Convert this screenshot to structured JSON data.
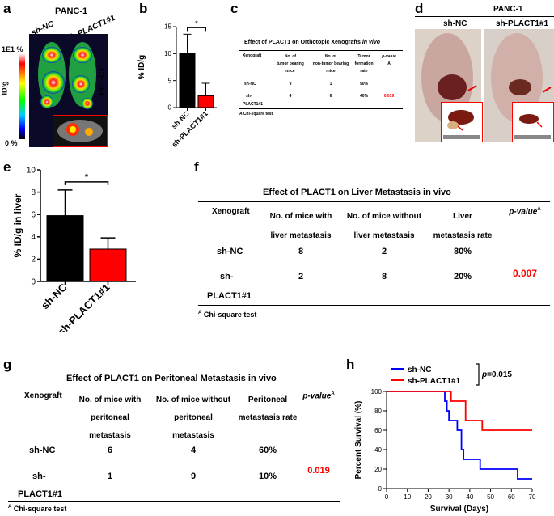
{
  "panels": {
    "a": {
      "letter": "a",
      "title": "PANC-1",
      "groups": [
        "sh-NC",
        "sh-PLACT1#1"
      ],
      "scale_top": "1E1 %",
      "scale_unit": "ID/g",
      "scale_bottom": "0 %",
      "side_label": "PET-CT"
    },
    "b": {
      "letter": "b"
    },
    "c": {
      "letter": "c",
      "title_prefix": "Effect of PLACT1 on Orthotopic Xenografts ",
      "title_italic": "in vivo",
      "headers": [
        "Xenograft",
        "No. of",
        "tumor bearing",
        "mice",
        "No. of",
        "non-tumor bearing",
        "mice",
        "Tumor",
        "formation",
        "rate",
        "p-value",
        "A"
      ],
      "rows": [
        [
          "sh-NC",
          "9",
          "1",
          "90%"
        ],
        [
          "sh-",
          "4",
          "6",
          "40%"
        ]
      ],
      "row2_cont": "PLACT1#1",
      "pvalue": "0.019",
      "footnote": "A Chi-square test"
    },
    "d": {
      "letter": "d",
      "title": "PANC-1",
      "groups": [
        "sh-NC",
        "sh-PLACT1#1"
      ]
    },
    "e": {
      "letter": "e"
    },
    "f": {
      "letter": "f",
      "title": "Effect of PLACT1 on Liver Metastasis in vivo",
      "h1": "Xenograft",
      "h2a": "No. of mice with",
      "h2b": "liver metastasis",
      "h3a": "No. of mice without",
      "h3b": "liver metastasis",
      "h4a": "Liver",
      "h4b": "metastasis rate",
      "h5": "p-value",
      "h5sup": "A",
      "r1": [
        "sh-NC",
        "8",
        "2",
        "80%"
      ],
      "r2": [
        "sh-",
        "2",
        "8",
        "20%"
      ],
      "r2_cont": "PLACT1#1",
      "pvalue": "0.007",
      "foot_sup": "A",
      "footnote": "Chi-square test"
    },
    "g": {
      "letter": "g",
      "title": "Effect of PLACT1 on Peritoneal Metastasis in vivo",
      "h1": "Xenograft",
      "h2a": "No. of mice with",
      "h2b": "peritoneal",
      "h2c": "metastasis",
      "h3a": "No. of mice without",
      "h3b": "peritoneal",
      "h3c": "metastasis",
      "h4a": "Peritoneal",
      "h4b": "metastasis rate",
      "h5": "p-value",
      "h5sup": "A",
      "r1": [
        "sh-NC",
        "6",
        "4",
        "60%"
      ],
      "r2": [
        "sh-",
        "1",
        "9",
        "10%"
      ],
      "r2_cont": "PLACT1#1",
      "pvalue": "0.019",
      "foot_sup": "A",
      "footnote": "Chi-square test"
    },
    "h": {
      "letter": "h",
      "pvalue_prefix": "p",
      "pvalue_rest": "=0.015"
    }
  },
  "colors": {
    "ctrl": "#000000",
    "kd": "#ff0000",
    "ctrl_line": "#0000ff",
    "pvalue": "#ff0000"
  },
  "chart_data": [
    {
      "id": "b",
      "type": "bar",
      "categories": [
        "sh-NC",
        "sh-PLACT1#1"
      ],
      "values": [
        10.0,
        2.2
      ],
      "errors": [
        3.6,
        2.3
      ],
      "ylabel": "% ID/g",
      "yticks": [
        0,
        5,
        10,
        15
      ],
      "ylim": [
        0,
        15
      ],
      "significance": "*"
    },
    {
      "id": "e",
      "type": "bar",
      "categories": [
        "sh-NC",
        "sh-PLACT1#1"
      ],
      "values": [
        5.9,
        2.9
      ],
      "errors": [
        2.3,
        1.0
      ],
      "ylabel": "% ID/g in liver",
      "yticks": [
        0,
        2,
        4,
        6,
        8,
        10
      ],
      "ylim": [
        0,
        10
      ],
      "significance": "*"
    },
    {
      "id": "h",
      "type": "line",
      "xlabel": "Survival (Days)",
      "ylabel": "Percent Survival (%)",
      "xticks": [
        0,
        10,
        20,
        30,
        40,
        50,
        60,
        70
      ],
      "yticks": [
        0,
        20,
        40,
        60,
        80,
        100
      ],
      "xlim": [
        0,
        70
      ],
      "ylim": [
        0,
        100
      ],
      "series": [
        {
          "name": "sh-NC",
          "steps": [
            [
              0,
              100
            ],
            [
              28,
              100
            ],
            [
              28,
              90
            ],
            [
              29,
              90
            ],
            [
              29,
              80
            ],
            [
              30,
              80
            ],
            [
              30,
              70
            ],
            [
              34,
              70
            ],
            [
              34,
              60
            ],
            [
              36,
              60
            ],
            [
              36,
              40
            ],
            [
              37,
              40
            ],
            [
              37,
              30
            ],
            [
              45,
              30
            ],
            [
              45,
              20
            ],
            [
              63,
              20
            ],
            [
              63,
              10
            ],
            [
              70,
              10
            ]
          ]
        },
        {
          "name": "sh-PLACT1#1",
          "steps": [
            [
              0,
              100
            ],
            [
              31,
              100
            ],
            [
              31,
              90
            ],
            [
              38,
              90
            ],
            [
              38,
              70
            ],
            [
              46,
              70
            ],
            [
              46,
              60
            ],
            [
              70,
              60
            ]
          ]
        }
      ]
    }
  ]
}
